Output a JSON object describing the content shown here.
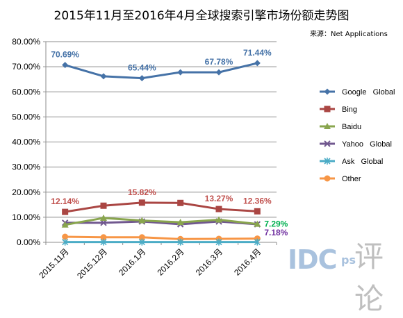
{
  "source": "来源：Net Applications",
  "watermark": {
    "text": "IDC",
    "suffix": "ps",
    "cn": "评论"
  },
  "chart_data": {
    "type": "line",
    "title": "2015年11月至2016年4月全球搜索引擎市场份额走势图",
    "categories": [
      "2015.11月",
      "2015.12月",
      "2016.1月",
      "2016.2月",
      "2016.3月",
      "2016.4月"
    ],
    "ylim": [
      0,
      80
    ],
    "yticks": [
      "0.00%",
      "10.00%",
      "20.00%",
      "30.00%",
      "40.00%",
      "50.00%",
      "60.00%",
      "70.00%",
      "80.00%"
    ],
    "grid": true,
    "legend_position": "right",
    "series": [
      {
        "name": "Google   Global",
        "color": "#4572a7",
        "marker": "diamond",
        "values": [
          70.69,
          66.2,
          65.44,
          67.8,
          67.78,
          71.44
        ]
      },
      {
        "name": "Bing",
        "color": "#aa4643",
        "marker": "square",
        "values": [
          12.14,
          14.6,
          15.82,
          15.7,
          13.27,
          12.36
        ]
      },
      {
        "name": "Baidu",
        "color": "#89a54e",
        "marker": "triangle",
        "values": [
          7.0,
          9.7,
          8.7,
          8.0,
          9.0,
          7.29
        ]
      },
      {
        "name": "Yahoo   Global",
        "color": "#71588f",
        "marker": "x",
        "values": [
          7.8,
          7.8,
          8.3,
          7.2,
          8.3,
          7.18
        ]
      },
      {
        "name": "Ask   Global",
        "color": "#4bacc6",
        "marker": "star",
        "values": [
          0.1,
          0.1,
          0.1,
          0.1,
          0.1,
          0.1
        ]
      },
      {
        "name": "Other",
        "color": "#f79646",
        "marker": "circle",
        "values": [
          2.2,
          2.0,
          2.0,
          1.3,
          1.4,
          1.5
        ]
      }
    ],
    "data_labels": [
      {
        "series": 0,
        "index": 0,
        "text": "70.69%",
        "color": "#4572a7",
        "pos": "above"
      },
      {
        "series": 0,
        "index": 2,
        "text": "65.44%",
        "color": "#4572a7",
        "pos": "above"
      },
      {
        "series": 0,
        "index": 4,
        "text": "67.78%",
        "color": "#4572a7",
        "pos": "above"
      },
      {
        "series": 0,
        "index": 5,
        "text": "71.44%",
        "color": "#4572a7",
        "pos": "above"
      },
      {
        "series": 1,
        "index": 0,
        "text": "12.14%",
        "color": "#c0504d",
        "pos": "above"
      },
      {
        "series": 1,
        "index": 2,
        "text": "15.82%",
        "color": "#c0504d",
        "pos": "above"
      },
      {
        "series": 1,
        "index": 4,
        "text": "13.27%",
        "color": "#c0504d",
        "pos": "above"
      },
      {
        "series": 1,
        "index": 5,
        "text": "12.36%",
        "color": "#c0504d",
        "pos": "above"
      },
      {
        "series": 2,
        "index": 5,
        "text": "7.29%",
        "color": "#00b050",
        "pos": "right"
      },
      {
        "series": 3,
        "index": 5,
        "text": "7.18%",
        "color": "#7030a0",
        "pos": "right-below"
      }
    ]
  }
}
